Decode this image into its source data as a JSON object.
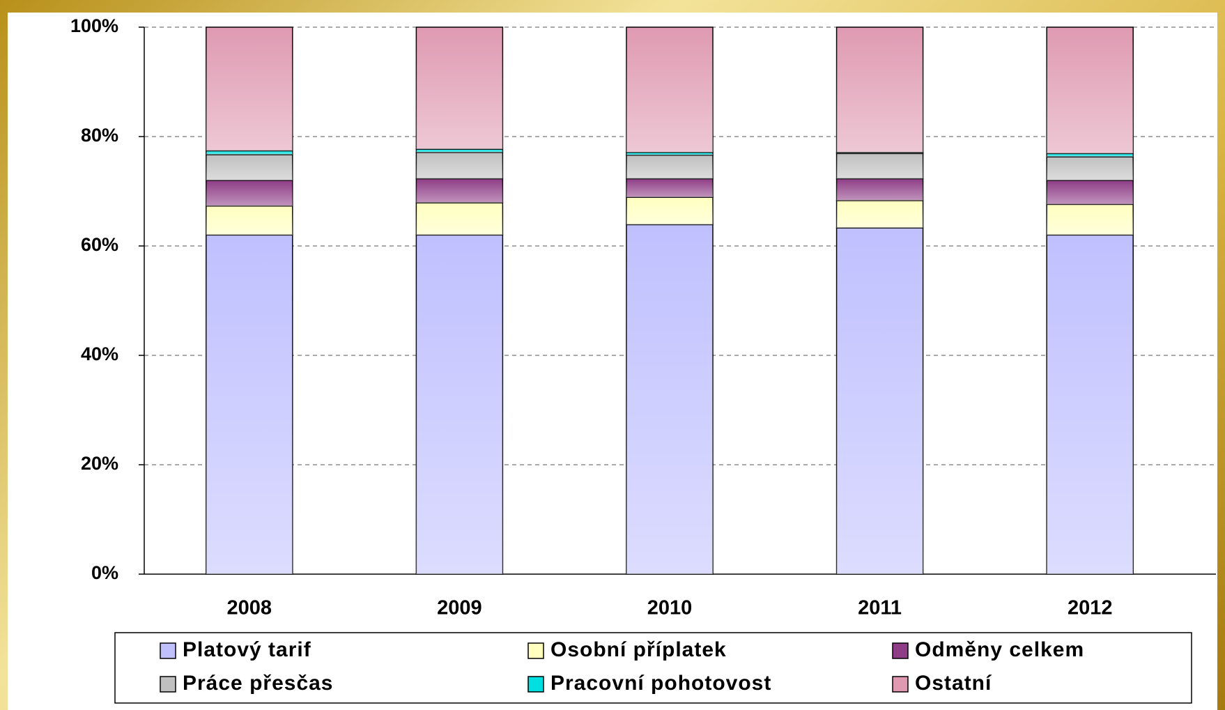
{
  "chart_data": {
    "type": "stacked_bar",
    "categories": [
      "2008",
      "2009",
      "2010",
      "2011",
      "2012"
    ],
    "series": [
      {
        "name": "Platový tarif",
        "color": "#c0c0ff",
        "values": [
          62.0,
          62.0,
          63.9,
          63.3,
          62.0
        ]
      },
      {
        "name": "Osobní příplatek",
        "color": "#ffffc0",
        "values": [
          5.3,
          5.9,
          5.0,
          5.0,
          5.6
        ]
      },
      {
        "name": "Odměny celkem",
        "color": "#8e3d86",
        "values": [
          4.7,
          4.4,
          3.4,
          4.0,
          4.4
        ]
      },
      {
        "name": "Práce přesčas",
        "color": "#c0c0c0",
        "values": [
          4.7,
          4.8,
          4.3,
          4.6,
          4.3
        ]
      },
      {
        "name": "Pracovní pohotovost",
        "color": "#00e0e0",
        "values": [
          0.7,
          0.6,
          0.5,
          0.2,
          0.6
        ]
      },
      {
        "name": "Ostatní",
        "color": "#df9ab2",
        "values": [
          22.6,
          22.3,
          22.9,
          22.9,
          23.1
        ]
      }
    ],
    "ylim": [
      0,
      100
    ],
    "yticks": [
      {
        "value": 0,
        "label": "0%"
      },
      {
        "value": 20,
        "label": "20%"
      },
      {
        "value": 40,
        "label": "40%"
      },
      {
        "value": 60,
        "label": "60%"
      },
      {
        "value": 80,
        "label": "80%"
      },
      {
        "value": 100,
        "label": "100%"
      }
    ],
    "grid": true,
    "legend": "bottom"
  }
}
